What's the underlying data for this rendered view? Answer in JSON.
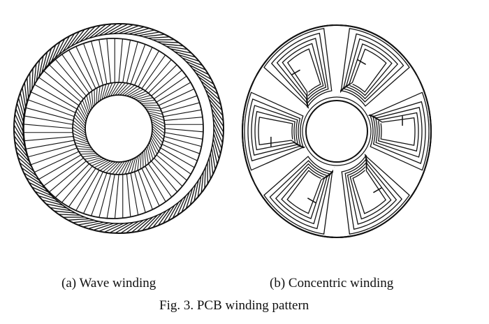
{
  "panels": [
    {
      "id": "a",
      "caption": "(a) Wave winding"
    },
    {
      "id": "b",
      "caption": "(b) Concentric winding"
    }
  ],
  "figure_caption": "Fig. 3. PCB winding pattern",
  "colors": {
    "ink": "#111111",
    "background": "#ffffff"
  },
  "wave_winding": {
    "inner_conductor_count": 72,
    "outer_band_line_count": 120
  },
  "concentric_winding": {
    "coil_count": 6,
    "turns_per_coil": 5
  }
}
